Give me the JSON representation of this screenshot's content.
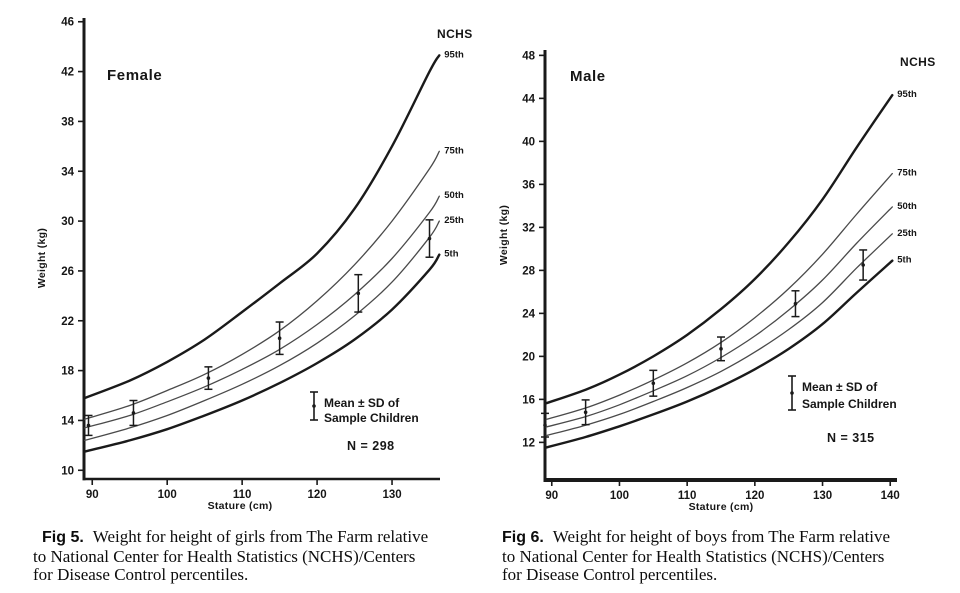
{
  "page": {
    "background": "#ffffff",
    "colors": {
      "ink": "#1a1a1a",
      "curve_light": "#4a4a4a"
    }
  },
  "figures": [
    {
      "caption_label": "Fig 5.",
      "caption_lines": [
        "Weight for height of girls from The Farm relative",
        "to National Center for Health Statistics (NCHS)/Centers",
        "for Disease Control percentiles."
      ]
    },
    {
      "caption_label": "Fig 6.",
      "caption_lines": [
        "Weight for height of boys from The Farm relative",
        "to National Center for Health Statistics (NCHS)/Centers",
        "for Disease Control percentiles."
      ]
    }
  ],
  "chart_data": [
    {
      "type": "line",
      "title": "Female",
      "corner_label": "NCHS",
      "xlabel": "Stature (cm)",
      "ylabel": "Weight (kg)",
      "xlim": [
        88.9,
        136.4
      ],
      "ylim": [
        9.3,
        46.3
      ],
      "x_ticks": [
        90,
        100,
        110,
        120,
        130
      ],
      "y_ticks": [
        10,
        14,
        18,
        22,
        26,
        30,
        34,
        38,
        42,
        46
      ],
      "grid": false,
      "legend_position": "lower-right",
      "series": [
        {
          "name": "95th",
          "weight": "thick",
          "x": [
            89,
            95,
            100,
            105,
            110,
            115,
            120,
            125,
            130,
            135,
            136.3
          ],
          "y": [
            15.8,
            17.2,
            18.7,
            20.5,
            22.7,
            25.0,
            27.4,
            31.0,
            36.0,
            42.0,
            43.3
          ]
        },
        {
          "name": "75th",
          "weight": "thin",
          "x": [
            89,
            95,
            100,
            105,
            110,
            115,
            120,
            125,
            130,
            135,
            136.3
          ],
          "y": [
            14.1,
            15.2,
            16.4,
            17.7,
            19.3,
            21.2,
            23.6,
            26.5,
            30.0,
            34.2,
            35.6
          ]
        },
        {
          "name": "50th",
          "weight": "thin",
          "x": [
            89,
            95,
            100,
            105,
            110,
            115,
            120,
            125,
            130,
            135,
            136.3
          ],
          "y": [
            13.4,
            14.4,
            15.5,
            16.7,
            18.1,
            19.7,
            21.7,
            24.1,
            27.0,
            30.7,
            32.0
          ]
        },
        {
          "name": "25th",
          "weight": "thin",
          "x": [
            89,
            95,
            100,
            105,
            110,
            115,
            120,
            125,
            130,
            135,
            136.3
          ],
          "y": [
            12.4,
            13.4,
            14.4,
            15.6,
            16.9,
            18.4,
            20.2,
            22.4,
            25.1,
            28.7,
            30.0
          ]
        },
        {
          "name": "5th",
          "weight": "thick",
          "x": [
            89,
            95,
            100,
            105,
            110,
            115,
            120,
            125,
            130,
            135,
            136.3
          ],
          "y": [
            11.5,
            12.4,
            13.3,
            14.4,
            15.6,
            17.0,
            18.6,
            20.5,
            22.9,
            26.1,
            27.3
          ]
        }
      ],
      "sample_points": {
        "label": "Mean ± SD of Sample Children",
        "x": [
          89.5,
          95.5,
          105.5,
          115,
          125.5,
          135
        ],
        "mean": [
          13.6,
          14.6,
          17.4,
          20.6,
          24.2,
          28.6
        ],
        "sd": [
          0.8,
          1.0,
          0.9,
          1.3,
          1.5,
          1.5
        ]
      },
      "legend": {
        "line1": "Mean ± SD of",
        "line2": "Sample Children",
        "n_label": "N = 298"
      }
    },
    {
      "type": "line",
      "title": "Male",
      "corner_label": "NCHS",
      "xlabel": "Stature (cm)",
      "ylabel": "Weight (kg)",
      "xlim": [
        89.0,
        141.0
      ],
      "ylim": [
        8.5,
        48.5
      ],
      "x_ticks": [
        90,
        100,
        110,
        120,
        130,
        140
      ],
      "y_ticks": [
        12,
        16,
        20,
        24,
        28,
        32,
        36,
        40,
        44,
        48
      ],
      "grid": false,
      "legend_position": "lower-right",
      "series": [
        {
          "name": "95th",
          "weight": "thick",
          "x": [
            89,
            95,
            100,
            105,
            110,
            115,
            120,
            125,
            130,
            135,
            140.3
          ],
          "y": [
            15.6,
            16.9,
            18.3,
            20.0,
            22.0,
            24.4,
            27.2,
            30.6,
            34.6,
            39.4,
            44.3
          ]
        },
        {
          "name": "75th",
          "weight": "thin",
          "x": [
            89,
            95,
            100,
            105,
            110,
            115,
            120,
            125,
            130,
            135,
            140.3
          ],
          "y": [
            14.1,
            15.2,
            16.4,
            17.8,
            19.4,
            21.3,
            23.6,
            26.3,
            29.5,
            33.2,
            37.0
          ]
        },
        {
          "name": "50th",
          "weight": "thin",
          "x": [
            89,
            95,
            100,
            105,
            110,
            115,
            120,
            125,
            130,
            135,
            140.3
          ],
          "y": [
            13.4,
            14.4,
            15.5,
            16.8,
            18.2,
            19.9,
            21.9,
            24.3,
            27.1,
            30.5,
            33.9
          ]
        },
        {
          "name": "25th",
          "weight": "thin",
          "x": [
            89,
            95,
            100,
            105,
            110,
            115,
            120,
            125,
            130,
            135,
            140.3
          ],
          "y": [
            12.6,
            13.6,
            14.6,
            15.8,
            17.1,
            18.6,
            20.4,
            22.5,
            25.0,
            28.2,
            31.4
          ]
        },
        {
          "name": "5th",
          "weight": "thick",
          "x": [
            89,
            95,
            100,
            105,
            110,
            115,
            120,
            125,
            130,
            135,
            140.3
          ],
          "y": [
            11.5,
            12.5,
            13.5,
            14.6,
            15.8,
            17.2,
            18.8,
            20.7,
            23.0,
            25.9,
            28.9
          ]
        }
      ],
      "sample_points": {
        "label": "Mean ± SD of Sample Children",
        "x": [
          89,
          95,
          105,
          115,
          126,
          136
        ],
        "mean": [
          13.6,
          14.8,
          17.5,
          20.7,
          24.9,
          28.5
        ],
        "sd": [
          1.1,
          1.15,
          1.2,
          1.1,
          1.2,
          1.4
        ]
      },
      "legend": {
        "line1": "Mean ± SD of",
        "line2": "Sample Children",
        "n_label": "N = 315"
      }
    }
  ]
}
